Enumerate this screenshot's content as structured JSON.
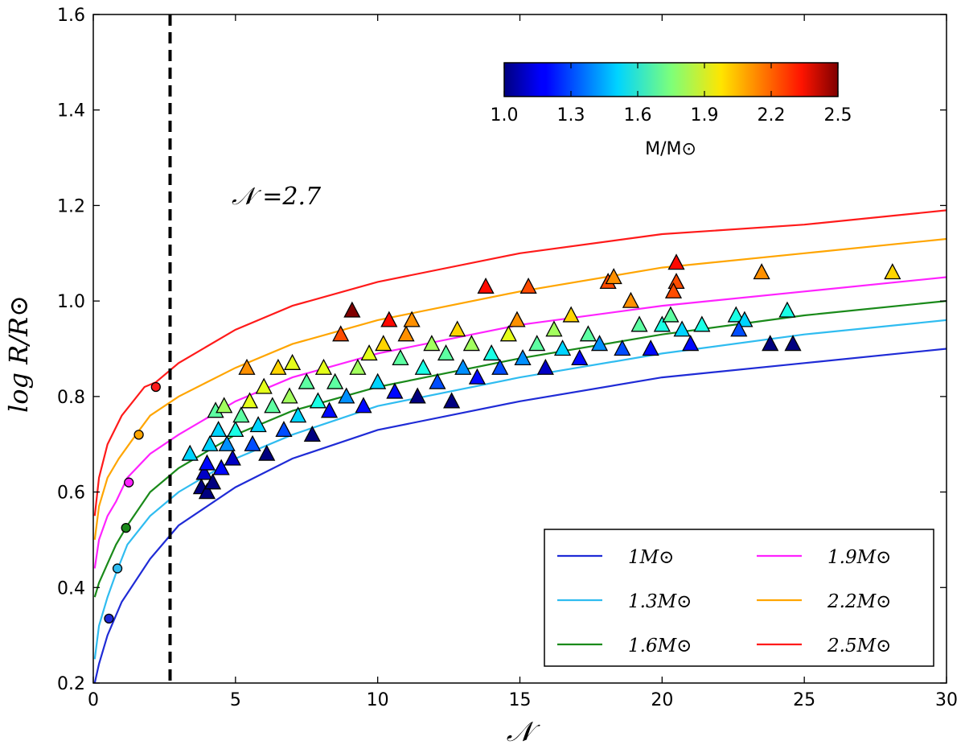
{
  "chart_data": {
    "type": "scatter",
    "title": "",
    "xlabel": "𝒩",
    "ylabel": "log R/R⊙",
    "xlim": [
      0,
      30
    ],
    "ylim": [
      0.2,
      1.6
    ],
    "xticks": [
      0,
      5,
      10,
      15,
      20,
      25,
      30
    ],
    "yticks": [
      0.2,
      0.4,
      0.6,
      0.8,
      1.0,
      1.2,
      1.4,
      1.6
    ],
    "xtick_labels": [
      "0",
      "5",
      "10",
      "15",
      "20",
      "25",
      "30"
    ],
    "ytick_labels": [
      "0.2",
      "0.4",
      "0.6",
      "0.8",
      "1.0",
      "1.2",
      "1.4",
      "1.6"
    ],
    "grid": false,
    "vline": {
      "x": 2.7,
      "style": "dashed",
      "color": "#000000"
    },
    "annotation": "𝒩 =2.7",
    "colorbar": {
      "label": "M/M⊙",
      "min": 1.0,
      "max": 2.5,
      "ticks": [
        "1.0",
        "1.3",
        "1.6",
        "1.9",
        "2.2",
        "2.5"
      ],
      "colormap": "jet",
      "position": "top-right"
    },
    "legend": {
      "position": "lower-right",
      "columns": 2,
      "entries": [
        {
          "label": "1M⊙",
          "color": "#1f2bd6"
        },
        {
          "label": "1.3M⊙",
          "color": "#2fbcf0"
        },
        {
          "label": "1.6M⊙",
          "color": "#1a8a1a"
        },
        {
          "label": "1.9M⊙",
          "color": "#ff22ff"
        },
        {
          "label": "2.2M⊙",
          "color": "#ffa500"
        },
        {
          "label": "2.5M⊙",
          "color": "#ff1a1a"
        }
      ]
    },
    "series": [
      {
        "name": "1M⊙",
        "mass": 1.0,
        "color": "#1f2bd6",
        "x": [
          0.05,
          0.2,
          0.5,
          1,
          2,
          3,
          5,
          7,
          10,
          15,
          20,
          25,
          30
        ],
        "y": [
          0.2,
          0.24,
          0.3,
          0.37,
          0.46,
          0.53,
          0.61,
          0.67,
          0.73,
          0.79,
          0.84,
          0.87,
          0.9
        ],
        "marker_point": {
          "x": 0.55,
          "y": 0.335
        }
      },
      {
        "name": "1.3M⊙",
        "mass": 1.3,
        "color": "#2fbcf0",
        "x": [
          0.05,
          0.2,
          0.5,
          0.8,
          1.2,
          2,
          3,
          5,
          7,
          10,
          15,
          20,
          25,
          30
        ],
        "y": [
          0.25,
          0.32,
          0.38,
          0.43,
          0.49,
          0.55,
          0.6,
          0.67,
          0.72,
          0.78,
          0.84,
          0.89,
          0.93,
          0.96
        ],
        "marker_point": {
          "x": 0.85,
          "y": 0.44
        }
      },
      {
        "name": "1.6M⊙",
        "mass": 1.6,
        "color": "#1a8a1a",
        "x": [
          0.05,
          0.2,
          0.5,
          0.8,
          1.2,
          2,
          3,
          5,
          7,
          10,
          15,
          20,
          25,
          30
        ],
        "y": [
          0.38,
          0.41,
          0.45,
          0.49,
          0.53,
          0.6,
          0.65,
          0.72,
          0.77,
          0.82,
          0.88,
          0.93,
          0.97,
          1.0
        ],
        "marker_point": {
          "x": 1.15,
          "y": 0.525
        }
      },
      {
        "name": "1.9M⊙",
        "mass": 1.9,
        "color": "#ff22ff",
        "x": [
          0.05,
          0.2,
          0.5,
          0.8,
          1.2,
          2,
          3,
          5,
          7,
          10,
          15,
          20,
          25,
          30
        ],
        "y": [
          0.44,
          0.5,
          0.55,
          0.58,
          0.63,
          0.68,
          0.72,
          0.79,
          0.84,
          0.89,
          0.95,
          0.99,
          1.02,
          1.05
        ],
        "marker_point": {
          "x": 1.25,
          "y": 0.62
        }
      },
      {
        "name": "2.2M⊙",
        "mass": 2.2,
        "color": "#ffa500",
        "x": [
          0.05,
          0.2,
          0.5,
          0.9,
          1.5,
          2,
          3,
          5,
          7,
          10,
          15,
          20,
          25,
          30
        ],
        "y": [
          0.5,
          0.57,
          0.63,
          0.67,
          0.72,
          0.76,
          0.8,
          0.86,
          0.91,
          0.96,
          1.02,
          1.07,
          1.1,
          1.13
        ],
        "marker_point": {
          "x": 1.6,
          "y": 0.72
        }
      },
      {
        "name": "2.5M⊙",
        "mass": 2.5,
        "color": "#ff1a1a",
        "x": [
          0.05,
          0.2,
          0.5,
          1,
          1.8,
          2.2,
          3,
          5,
          7,
          10,
          15,
          20,
          25,
          30
        ],
        "y": [
          0.55,
          0.63,
          0.7,
          0.76,
          0.82,
          0.83,
          0.87,
          0.94,
          0.99,
          1.04,
          1.1,
          1.14,
          1.16,
          1.19
        ],
        "marker_point": {
          "x": 2.2,
          "y": 0.82
        }
      }
    ],
    "scatter_points": [
      {
        "x": 3.4,
        "y": 0.68,
        "m": 1.5
      },
      {
        "x": 3.8,
        "y": 0.61,
        "m": 1.0
      },
      {
        "x": 3.9,
        "y": 0.64,
        "m": 1.1
      },
      {
        "x": 4.0,
        "y": 0.66,
        "m": 1.2
      },
      {
        "x": 4.0,
        "y": 0.6,
        "m": 1.0
      },
      {
        "x": 4.1,
        "y": 0.7,
        "m": 1.5
      },
      {
        "x": 4.2,
        "y": 0.62,
        "m": 1.0
      },
      {
        "x": 4.3,
        "y": 0.77,
        "m": 1.7
      },
      {
        "x": 4.4,
        "y": 0.73,
        "m": 1.5
      },
      {
        "x": 4.5,
        "y": 0.65,
        "m": 1.2
      },
      {
        "x": 4.6,
        "y": 0.78,
        "m": 1.8
      },
      {
        "x": 4.7,
        "y": 0.7,
        "m": 1.4
      },
      {
        "x": 4.9,
        "y": 0.67,
        "m": 1.1
      },
      {
        "x": 5.0,
        "y": 0.73,
        "m": 1.6
      },
      {
        "x": 5.2,
        "y": 0.76,
        "m": 1.7
      },
      {
        "x": 5.4,
        "y": 0.86,
        "m": 2.1
      },
      {
        "x": 5.5,
        "y": 0.79,
        "m": 1.9
      },
      {
        "x": 5.6,
        "y": 0.7,
        "m": 1.3
      },
      {
        "x": 5.8,
        "y": 0.74,
        "m": 1.5
      },
      {
        "x": 6.0,
        "y": 0.82,
        "m": 1.9
      },
      {
        "x": 6.1,
        "y": 0.68,
        "m": 1.0
      },
      {
        "x": 6.3,
        "y": 0.78,
        "m": 1.7
      },
      {
        "x": 6.5,
        "y": 0.86,
        "m": 2.0
      },
      {
        "x": 6.7,
        "y": 0.73,
        "m": 1.3
      },
      {
        "x": 6.9,
        "y": 0.8,
        "m": 1.8
      },
      {
        "x": 7.0,
        "y": 0.87,
        "m": 1.9
      },
      {
        "x": 7.2,
        "y": 0.76,
        "m": 1.5
      },
      {
        "x": 7.5,
        "y": 0.83,
        "m": 1.7
      },
      {
        "x": 7.7,
        "y": 0.72,
        "m": 1.0
      },
      {
        "x": 7.9,
        "y": 0.79,
        "m": 1.6
      },
      {
        "x": 8.1,
        "y": 0.86,
        "m": 1.9
      },
      {
        "x": 8.3,
        "y": 0.77,
        "m": 1.2
      },
      {
        "x": 8.5,
        "y": 0.83,
        "m": 1.7
      },
      {
        "x": 8.7,
        "y": 0.93,
        "m": 2.2
      },
      {
        "x": 8.9,
        "y": 0.8,
        "m": 1.4
      },
      {
        "x": 9.1,
        "y": 0.98,
        "m": 2.5
      },
      {
        "x": 9.3,
        "y": 0.86,
        "m": 1.8
      },
      {
        "x": 9.5,
        "y": 0.78,
        "m": 1.2
      },
      {
        "x": 9.7,
        "y": 0.89,
        "m": 1.9
      },
      {
        "x": 10.0,
        "y": 0.83,
        "m": 1.5
      },
      {
        "x": 10.2,
        "y": 0.91,
        "m": 2.0
      },
      {
        "x": 10.4,
        "y": 0.96,
        "m": 2.3
      },
      {
        "x": 10.6,
        "y": 0.81,
        "m": 1.2
      },
      {
        "x": 10.8,
        "y": 0.88,
        "m": 1.7
      },
      {
        "x": 11.0,
        "y": 0.93,
        "m": 2.1
      },
      {
        "x": 11.2,
        "y": 0.96,
        "m": 2.1
      },
      {
        "x": 11.4,
        "y": 0.8,
        "m": 1.0
      },
      {
        "x": 11.6,
        "y": 0.86,
        "m": 1.6
      },
      {
        "x": 11.9,
        "y": 0.91,
        "m": 1.8
      },
      {
        "x": 12.1,
        "y": 0.83,
        "m": 1.3
      },
      {
        "x": 12.4,
        "y": 0.89,
        "m": 1.7
      },
      {
        "x": 12.6,
        "y": 0.79,
        "m": 1.0
      },
      {
        "x": 12.8,
        "y": 0.94,
        "m": 2.0
      },
      {
        "x": 13.0,
        "y": 0.86,
        "m": 1.4
      },
      {
        "x": 13.3,
        "y": 0.91,
        "m": 1.8
      },
      {
        "x": 13.5,
        "y": 0.84,
        "m": 1.2
      },
      {
        "x": 13.8,
        "y": 1.03,
        "m": 2.3
      },
      {
        "x": 14.0,
        "y": 0.89,
        "m": 1.6
      },
      {
        "x": 14.3,
        "y": 0.86,
        "m": 1.3
      },
      {
        "x": 14.6,
        "y": 0.93,
        "m": 1.9
      },
      {
        "x": 14.9,
        "y": 0.96,
        "m": 2.1
      },
      {
        "x": 15.1,
        "y": 0.88,
        "m": 1.4
      },
      {
        "x": 15.3,
        "y": 1.03,
        "m": 2.2
      },
      {
        "x": 15.6,
        "y": 0.91,
        "m": 1.7
      },
      {
        "x": 15.9,
        "y": 0.86,
        "m": 1.1
      },
      {
        "x": 16.2,
        "y": 0.94,
        "m": 1.8
      },
      {
        "x": 16.5,
        "y": 0.9,
        "m": 1.5
      },
      {
        "x": 16.8,
        "y": 0.97,
        "m": 2.0
      },
      {
        "x": 17.1,
        "y": 0.88,
        "m": 1.2
      },
      {
        "x": 17.4,
        "y": 0.93,
        "m": 1.7
      },
      {
        "x": 17.8,
        "y": 0.91,
        "m": 1.4
      },
      {
        "x": 18.1,
        "y": 1.04,
        "m": 2.2
      },
      {
        "x": 18.3,
        "y": 1.05,
        "m": 2.1
      },
      {
        "x": 18.6,
        "y": 0.9,
        "m": 1.3
      },
      {
        "x": 18.9,
        "y": 1.0,
        "m": 2.1
      },
      {
        "x": 19.2,
        "y": 0.95,
        "m": 1.7
      },
      {
        "x": 19.6,
        "y": 0.9,
        "m": 1.2
      },
      {
        "x": 20.0,
        "y": 0.95,
        "m": 1.6
      },
      {
        "x": 20.3,
        "y": 0.97,
        "m": 1.7
      },
      {
        "x": 20.5,
        "y": 1.08,
        "m": 2.3
      },
      {
        "x": 20.5,
        "y": 1.04,
        "m": 2.2
      },
      {
        "x": 20.4,
        "y": 1.02,
        "m": 2.2
      },
      {
        "x": 20.7,
        "y": 0.94,
        "m": 1.5
      },
      {
        "x": 21.0,
        "y": 0.91,
        "m": 1.2
      },
      {
        "x": 21.4,
        "y": 0.95,
        "m": 1.6
      },
      {
        "x": 22.6,
        "y": 0.97,
        "m": 1.6
      },
      {
        "x": 22.9,
        "y": 0.96,
        "m": 1.5
      },
      {
        "x": 22.7,
        "y": 0.94,
        "m": 1.3
      },
      {
        "x": 23.5,
        "y": 1.06,
        "m": 2.1
      },
      {
        "x": 23.8,
        "y": 0.91,
        "m": 1.0
      },
      {
        "x": 24.4,
        "y": 0.98,
        "m": 1.6
      },
      {
        "x": 24.6,
        "y": 0.91,
        "m": 1.0
      },
      {
        "x": 28.1,
        "y": 1.06,
        "m": 2.0
      }
    ]
  }
}
